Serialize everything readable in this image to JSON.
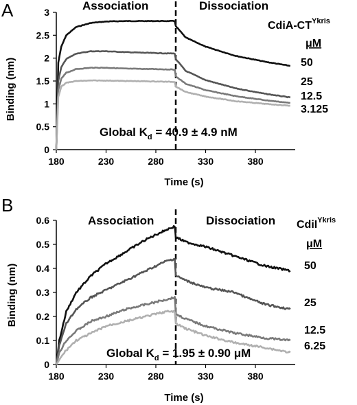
{
  "chart_data": [
    {
      "panel": "A",
      "type": "line",
      "xlabel": "Time (s)",
      "ylabel": "Binding (nm)",
      "xlim": [
        180,
        420
      ],
      "ylim": [
        0,
        3
      ],
      "x_ticks": [
        "180",
        "230",
        "280",
        "330",
        "380"
      ],
      "y_ticks": [
        "0",
        "0.5",
        "1",
        "1.5",
        "2",
        "2.5",
        "3"
      ],
      "divider_x": 300,
      "phase_labels": [
        "Association",
        "Dissociation"
      ],
      "legend_title": "CdiA-CT",
      "legend_title_sup": "Ykris",
      "legend_unit": "μM",
      "annotation_prefix": "Global K",
      "annotation_sub": "d",
      "annotation_value": " = 40.9 ± 4.9 nM",
      "series": [
        {
          "label": "50",
          "color": "#111111",
          "x": [
            180,
            182,
            185,
            190,
            200,
            215,
            230,
            250,
            280,
            299,
            300,
            310,
            330,
            360,
            390,
            415
          ],
          "values": [
            0,
            1.9,
            2.25,
            2.5,
            2.68,
            2.77,
            2.8,
            2.81,
            2.81,
            2.81,
            2.7,
            2.45,
            2.25,
            2.05,
            1.92,
            1.83
          ]
        },
        {
          "label": "25",
          "color": "#555555",
          "x": [
            180,
            182,
            185,
            190,
            200,
            215,
            230,
            250,
            280,
            299,
            300,
            310,
            330,
            360,
            390,
            415
          ],
          "values": [
            0,
            1.5,
            1.8,
            1.98,
            2.1,
            2.15,
            2.15,
            2.13,
            2.11,
            2.1,
            1.98,
            1.72,
            1.52,
            1.34,
            1.22,
            1.14
          ]
        },
        {
          "label": "12.5",
          "color": "#7a7a7a",
          "x": [
            180,
            182,
            185,
            190,
            200,
            215,
            230,
            250,
            280,
            299,
            300,
            310,
            330,
            360,
            390,
            415
          ],
          "values": [
            0,
            1.3,
            1.55,
            1.68,
            1.76,
            1.79,
            1.79,
            1.77,
            1.76,
            1.75,
            1.6,
            1.44,
            1.3,
            1.17,
            1.08,
            1.02
          ]
        },
        {
          "label": "3.125",
          "color": "#b0b0b0",
          "x": [
            180,
            182,
            185,
            190,
            200,
            215,
            230,
            250,
            280,
            299,
            300,
            310,
            330,
            360,
            390,
            415
          ],
          "values": [
            0,
            1.15,
            1.38,
            1.46,
            1.5,
            1.51,
            1.51,
            1.5,
            1.49,
            1.48,
            1.38,
            1.26,
            1.16,
            1.06,
            1.0,
            0.96
          ]
        }
      ]
    },
    {
      "panel": "B",
      "type": "line",
      "xlabel": "Time (s)",
      "ylabel": "Binding (nm)",
      "xlim": [
        180,
        420
      ],
      "ylim": [
        0,
        0.6
      ],
      "x_ticks": [
        "180",
        "230",
        "280",
        "330",
        "380"
      ],
      "y_ticks": [
        "0",
        "0.1",
        "0.2",
        "0.3",
        "0.4",
        "0.5",
        "0.6"
      ],
      "divider_x": 300,
      "phase_labels": [
        "Association",
        "Dissociation"
      ],
      "legend_title": "CdiI",
      "legend_title_sup": "Ykris",
      "legend_unit": "μM",
      "annotation_prefix": "Global K",
      "annotation_sub": "d",
      "annotation_value": " = 1.95 ± 0.90 μM",
      "series": [
        {
          "label": "50",
          "color": "#111111",
          "x": [
            180,
            183,
            190,
            200,
            215,
            230,
            250,
            270,
            290,
            299,
            300,
            310,
            330,
            360,
            390,
            415
          ],
          "values": [
            0,
            0.1,
            0.22,
            0.3,
            0.37,
            0.42,
            0.47,
            0.52,
            0.56,
            0.575,
            0.53,
            0.51,
            0.49,
            0.45,
            0.41,
            0.39
          ]
        },
        {
          "label": "25",
          "color": "#555555",
          "x": [
            180,
            183,
            190,
            200,
            215,
            230,
            250,
            270,
            290,
            299,
            300,
            310,
            330,
            360,
            370,
            390,
            415
          ],
          "values": [
            0,
            0.08,
            0.17,
            0.23,
            0.28,
            0.31,
            0.35,
            0.39,
            0.43,
            0.44,
            0.37,
            0.35,
            0.32,
            0.3,
            0.28,
            0.25,
            0.23
          ]
        },
        {
          "label": "12.5",
          "color": "#7a7a7a",
          "x": [
            180,
            183,
            190,
            200,
            215,
            230,
            250,
            270,
            290,
            299,
            300,
            310,
            330,
            360,
            390,
            415
          ],
          "values": [
            0,
            0.05,
            0.1,
            0.14,
            0.18,
            0.2,
            0.23,
            0.25,
            0.27,
            0.28,
            0.21,
            0.19,
            0.16,
            0.13,
            0.11,
            0.1
          ]
        },
        {
          "label": "6.25",
          "color": "#b0b0b0",
          "x": [
            180,
            183,
            190,
            200,
            215,
            230,
            250,
            270,
            290,
            299,
            300,
            310,
            330,
            360,
            390,
            415
          ],
          "values": [
            0,
            0.02,
            0.06,
            0.1,
            0.13,
            0.16,
            0.18,
            0.2,
            0.22,
            0.22,
            0.17,
            0.15,
            0.12,
            0.09,
            0.07,
            0.05
          ]
        }
      ]
    }
  ]
}
